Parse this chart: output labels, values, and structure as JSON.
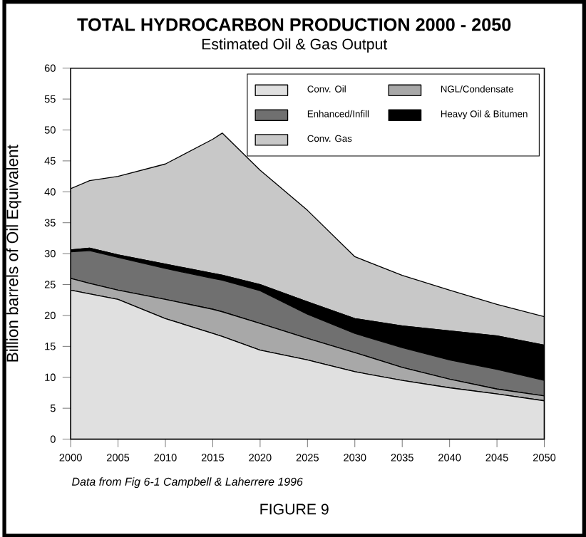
{
  "chart_data": {
    "type": "area",
    "stacked": true,
    "title": "TOTAL HYDROCARBON PRODUCTION 2000 - 2050",
    "subtitle": "Estimated Oil & Gas Output",
    "ylabel": "Billion barrels of Oil Equivalent",
    "x": [
      2000,
      2002,
      2005,
      2010,
      2015,
      2016,
      2020,
      2025,
      2030,
      2035,
      2040,
      2045,
      2050
    ],
    "series": [
      {
        "name": "Conv. Oil",
        "color": "#e0e0e0",
        "values": [
          24.1,
          23.5,
          22.6,
          19.5,
          17.1,
          16.6,
          14.4,
          12.8,
          10.9,
          9.5,
          8.3,
          7.3,
          6.2
        ]
      },
      {
        "name": "NGL/Condensate",
        "color": "#a8a8a8",
        "values": [
          1.9,
          1.7,
          1.5,
          3.1,
          3.9,
          4.0,
          4.3,
          3.5,
          3.1,
          2.1,
          1.4,
          0.8,
          0.8
        ]
      },
      {
        "name": "Enhanced/Infill",
        "color": "#707070",
        "values": [
          4.3,
          5.3,
          5.3,
          5.0,
          5.0,
          5.1,
          5.3,
          3.9,
          3.1,
          3.2,
          3.1,
          3.2,
          2.5
        ]
      },
      {
        "name": "Heavy Oil & Bitumen",
        "color": "#000000",
        "values": [
          0.3,
          0.4,
          0.4,
          0.7,
          0.8,
          0.8,
          1.0,
          2.0,
          2.4,
          3.5,
          4.7,
          5.4,
          5.7
        ]
      },
      {
        "name": "Conv. Gas",
        "color": "#c8c8c8",
        "values": [
          9.9,
          10.9,
          12.7,
          16.2,
          21.7,
          23.0,
          18.5,
          14.8,
          10.0,
          8.2,
          6.6,
          5.1,
          4.6
        ]
      }
    ],
    "xlim": [
      2000,
      2050
    ],
    "xticks": [
      2000,
      2005,
      2010,
      2015,
      2020,
      2025,
      2030,
      2035,
      2040,
      2045,
      2050
    ],
    "ylim": [
      0,
      60
    ],
    "yticks": [
      0,
      5,
      10,
      15,
      20,
      25,
      30,
      35,
      40,
      45,
      50,
      55,
      60
    ],
    "grid": false,
    "legend": "top right",
    "annotations": [
      "Data from Fig 6-1 Campbell & Laherrere 1996",
      "FIGURE 9"
    ]
  }
}
